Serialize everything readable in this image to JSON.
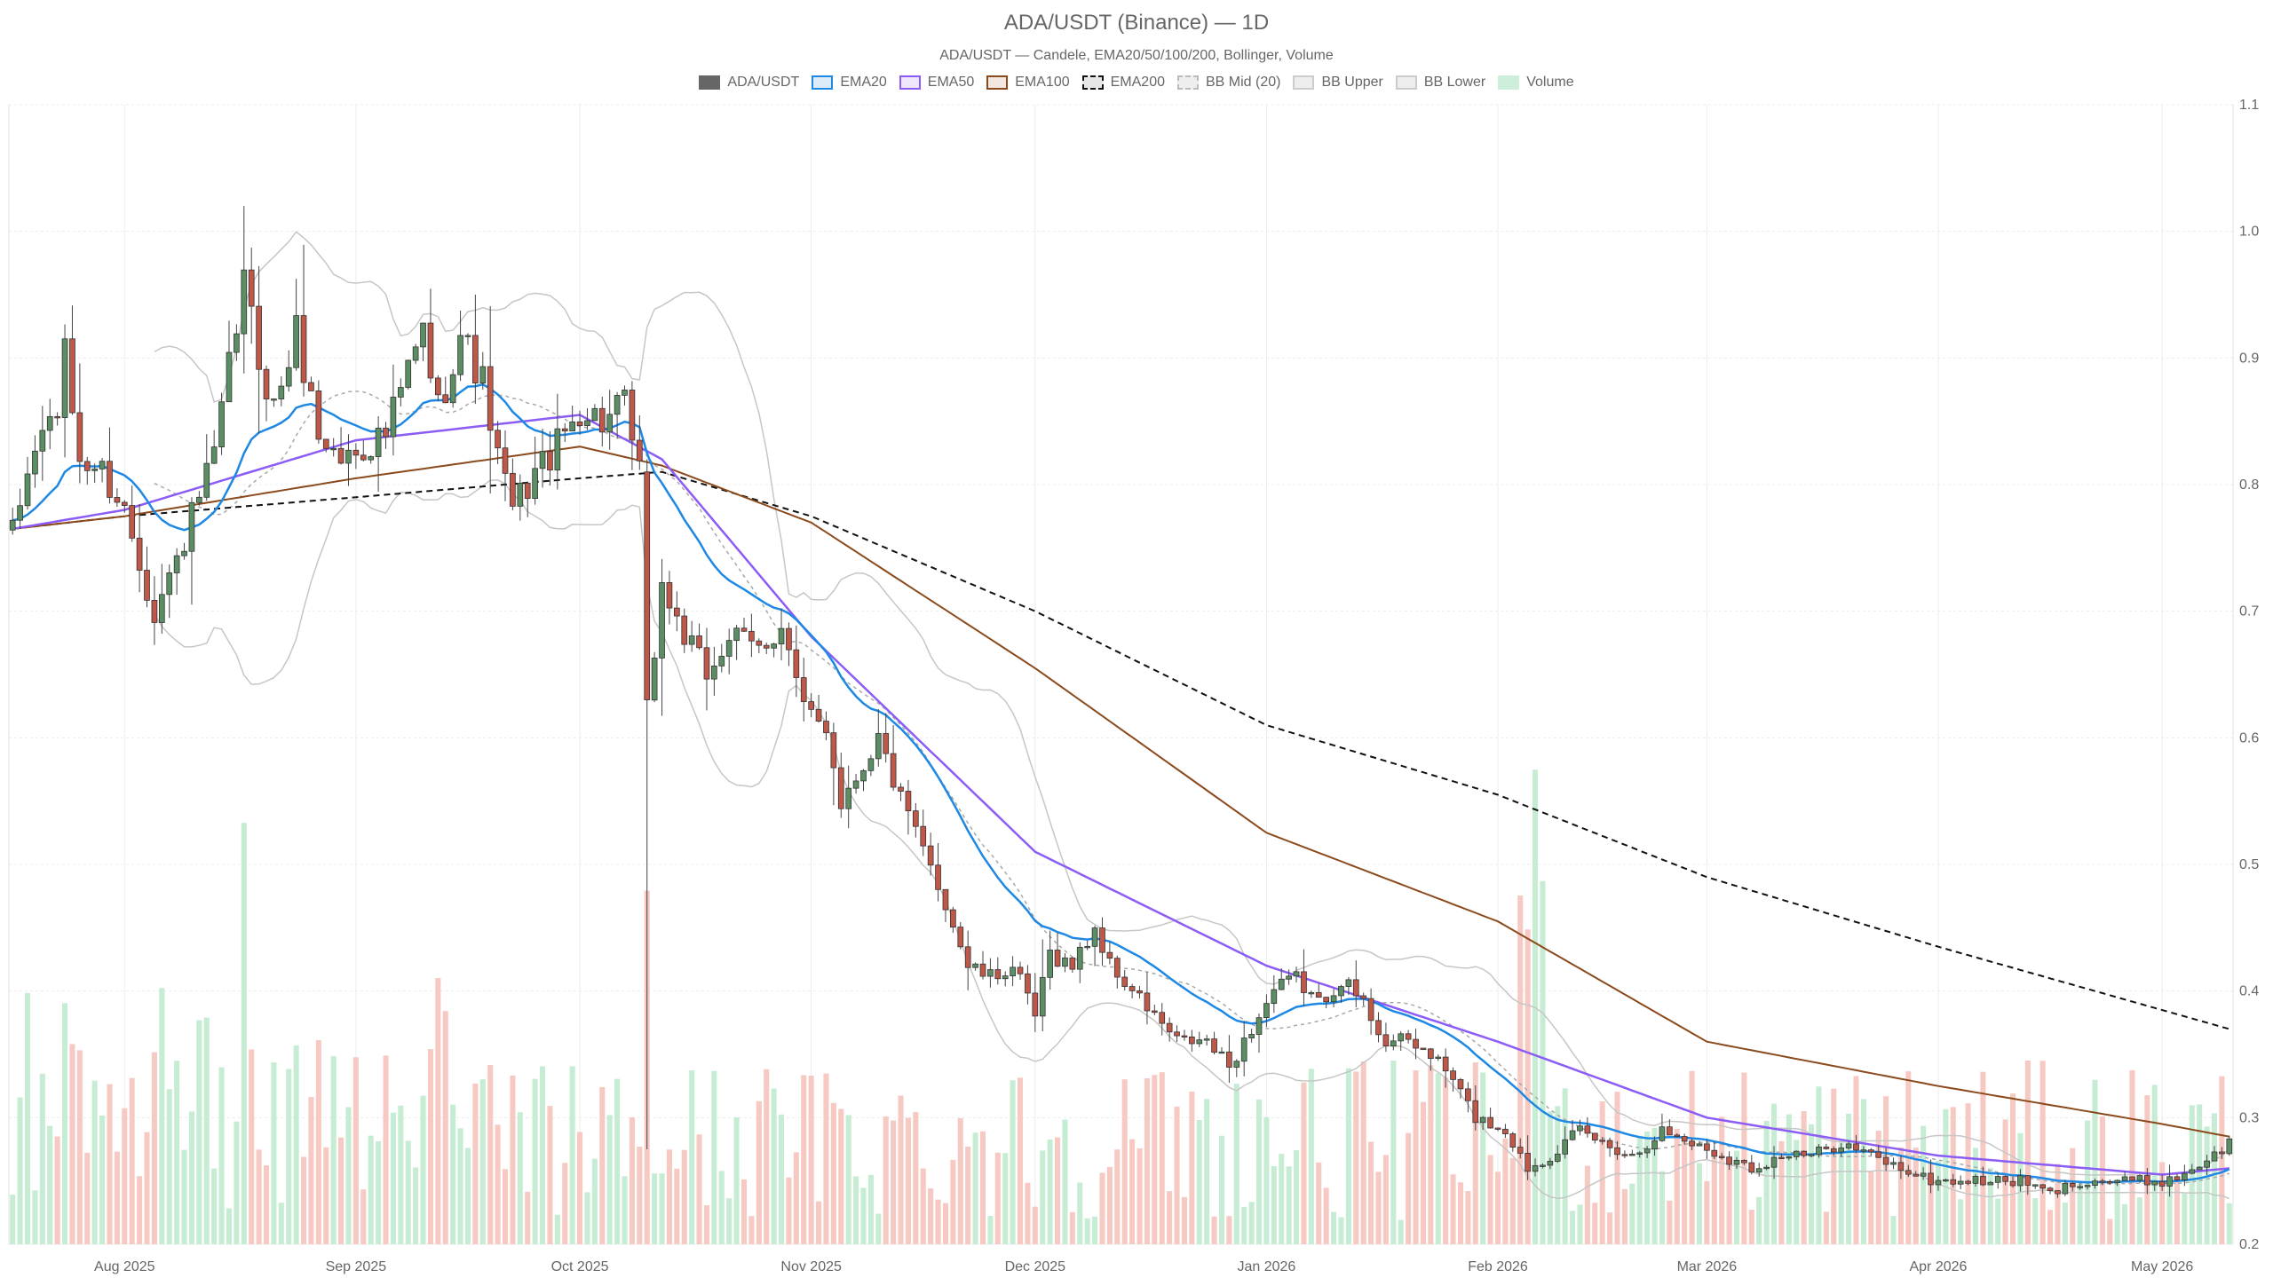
{
  "title": "ADA/USDT (Binance) — 1D",
  "subtitle": "ADA/USDT — Candele, EMA20/50/100/200, Bollinger, Volume",
  "legend": [
    {
      "label": "ADA/USDT",
      "fill": "#666666",
      "stroke": "#666666",
      "dash": false
    },
    {
      "label": "EMA20",
      "fill": "#dcecfb",
      "stroke": "#1e88e5",
      "dash": false
    },
    {
      "label": "EMA50",
      "fill": "#efe6fb",
      "stroke": "#8b5cf6",
      "dash": false
    },
    {
      "label": "EMA100",
      "fill": "#f2e8e1",
      "stroke": "#8b4a1c",
      "dash": false
    },
    {
      "label": "EMA200",
      "fill": "#e6e6e6",
      "stroke": "#111111",
      "dash": true
    },
    {
      "label": "BB Mid (20)",
      "fill": "#eeeeee",
      "stroke": "#bbbbbb",
      "dash": true
    },
    {
      "label": "BB Upper",
      "fill": "#eeeeee",
      "stroke": "#cccccc",
      "dash": false
    },
    {
      "label": "BB Lower",
      "fill": "#eeeeee",
      "stroke": "#cccccc",
      "dash": false
    },
    {
      "label": "Volume",
      "fill": "#cdeedb",
      "stroke": "#cdeedb",
      "dash": false
    }
  ],
  "colors": {
    "up": "#5b8f63",
    "down": "#c0584a",
    "ema20": "#1e88e5",
    "ema50": "#8b5cf6",
    "ema100": "#8b4a1c",
    "ema200": "#111111",
    "bb": "#c6c6c6",
    "bb_mid": "#a8a8a8",
    "vol_up": "#c6ecd4",
    "vol_down": "#f6c9c3",
    "grid": "#ececec"
  },
  "chart_data": {
    "type": "candlestick",
    "title": "ADA/USDT (Binance) — 1D",
    "subtitle": "ADA/USDT — Candele, EMA20/50/100/200, Bollinger, Volume",
    "y_axis": {
      "side": "right",
      "range": [
        0.2,
        1.1
      ],
      "ticks": [
        "0.2",
        "0.3",
        "0.4",
        "0.5",
        "0.6",
        "0.7",
        "0.8",
        "0.9",
        "1.0",
        "1.1"
      ]
    },
    "x_axis": {
      "range": [
        "2025-07-17",
        "2026-05-10"
      ],
      "ticks": [
        {
          "date": "2025-08-01",
          "label": "Aug 2025"
        },
        {
          "date": "2025-09-01",
          "label": "Sep 2025"
        },
        {
          "date": "2025-10-01",
          "label": "Oct 2025"
        },
        {
          "date": "2025-11-01",
          "label": "Nov 2025"
        },
        {
          "date": "2025-12-01",
          "label": "Dec 2025"
        },
        {
          "date": "2026-01-01",
          "label": "Jan 2026"
        },
        {
          "date": "2026-02-01",
          "label": "Feb 2026"
        },
        {
          "date": "2026-03-01",
          "label": "Mar 2026"
        },
        {
          "date": "2026-04-01",
          "label": "Apr 2026"
        },
        {
          "date": "2026-05-01",
          "label": "May 2026"
        }
      ]
    },
    "grid": true,
    "legend_position": "top-center",
    "start_date": "2025-07-17",
    "price_anchors": [
      [
        "2025-07-17",
        0.76
      ],
      [
        "2025-07-20",
        0.83
      ],
      [
        "2025-07-23",
        0.86
      ],
      [
        "2025-07-24",
        0.9
      ],
      [
        "2025-07-26",
        0.82
      ],
      [
        "2025-07-29",
        0.81
      ],
      [
        "2025-08-01",
        0.78
      ],
      [
        "2025-08-03",
        0.74
      ],
      [
        "2025-08-05",
        0.7
      ],
      [
        "2025-08-08",
        0.74
      ],
      [
        "2025-08-11",
        0.79
      ],
      [
        "2025-08-13",
        0.82
      ],
      [
        "2025-08-15",
        0.89
      ],
      [
        "2025-08-17",
        0.96
      ],
      [
        "2025-08-19",
        0.9
      ],
      [
        "2025-08-21",
        0.86
      ],
      [
        "2025-08-24",
        0.92
      ],
      [
        "2025-08-27",
        0.84
      ],
      [
        "2025-08-30",
        0.82
      ],
      [
        "2025-09-02",
        0.83
      ],
      [
        "2025-09-05",
        0.84
      ],
      [
        "2025-09-08",
        0.89
      ],
      [
        "2025-09-10",
        0.92
      ],
      [
        "2025-09-12",
        0.86
      ],
      [
        "2025-09-15",
        0.92
      ],
      [
        "2025-09-18",
        0.88
      ],
      [
        "2025-09-20",
        0.82
      ],
      [
        "2025-09-22",
        0.78
      ],
      [
        "2025-09-25",
        0.81
      ],
      [
        "2025-09-28",
        0.83
      ],
      [
        "2025-10-01",
        0.86
      ],
      [
        "2025-10-04",
        0.85
      ],
      [
        "2025-10-07",
        0.86
      ],
      [
        "2025-10-09",
        0.81
      ],
      [
        "2025-10-10",
        0.62
      ],
      [
        "2025-10-12",
        0.72
      ],
      [
        "2025-10-15",
        0.68
      ],
      [
        "2025-10-18",
        0.65
      ],
      [
        "2025-10-21",
        0.68
      ],
      [
        "2025-10-25",
        0.67
      ],
      [
        "2025-10-28",
        0.69
      ],
      [
        "2025-10-31",
        0.62
      ],
      [
        "2025-11-03",
        0.61
      ],
      [
        "2025-11-05",
        0.55
      ],
      [
        "2025-11-08",
        0.58
      ],
      [
        "2025-11-10",
        0.6
      ],
      [
        "2025-11-13",
        0.55
      ],
      [
        "2025-11-16",
        0.51
      ],
      [
        "2025-11-19",
        0.47
      ],
      [
        "2025-11-22",
        0.42
      ],
      [
        "2025-11-25",
        0.41
      ],
      [
        "2025-11-28",
        0.42
      ],
      [
        "2025-12-01",
        0.38
      ],
      [
        "2025-12-03",
        0.43
      ],
      [
        "2025-12-06",
        0.42
      ],
      [
        "2025-12-09",
        0.45
      ],
      [
        "2025-12-11",
        0.42
      ],
      [
        "2025-12-14",
        0.4
      ],
      [
        "2025-12-17",
        0.38
      ],
      [
        "2025-12-20",
        0.36
      ],
      [
        "2025-12-24",
        0.36
      ],
      [
        "2025-12-27",
        0.34
      ],
      [
        "2025-12-30",
        0.37
      ],
      [
        "2026-01-02",
        0.4
      ],
      [
        "2026-01-05",
        0.41
      ],
      [
        "2026-01-08",
        0.39
      ],
      [
        "2026-01-11",
        0.41
      ],
      [
        "2026-01-14",
        0.39
      ],
      [
        "2026-01-17",
        0.36
      ],
      [
        "2026-01-20",
        0.36
      ],
      [
        "2026-01-23",
        0.35
      ],
      [
        "2026-01-26",
        0.33
      ],
      [
        "2026-01-29",
        0.3
      ],
      [
        "2026-02-02",
        0.29
      ],
      [
        "2026-02-05",
        0.26
      ],
      [
        "2026-02-08",
        0.27
      ],
      [
        "2026-02-12",
        0.29
      ],
      [
        "2026-02-15",
        0.28
      ],
      [
        "2026-02-19",
        0.27
      ],
      [
        "2026-02-23",
        0.29
      ],
      [
        "2026-02-27",
        0.28
      ],
      [
        "2026-03-03",
        0.27
      ],
      [
        "2026-03-07",
        0.26
      ],
      [
        "2026-03-11",
        0.27
      ],
      [
        "2026-03-15",
        0.27
      ],
      [
        "2026-03-19",
        0.28
      ],
      [
        "2026-03-23",
        0.27
      ],
      [
        "2026-03-27",
        0.26
      ],
      [
        "2026-03-31",
        0.25
      ],
      [
        "2026-04-04",
        0.25
      ],
      [
        "2026-04-08",
        0.25
      ],
      [
        "2026-04-12",
        0.25
      ],
      [
        "2026-04-16",
        0.24
      ],
      [
        "2026-04-20",
        0.25
      ],
      [
        "2026-04-24",
        0.25
      ],
      [
        "2026-04-28",
        0.25
      ],
      [
        "2026-05-02",
        0.25
      ],
      [
        "2026-05-05",
        0.26
      ],
      [
        "2026-05-08",
        0.27
      ],
      [
        "2026-05-10",
        0.28
      ]
    ],
    "ema200_anchors": [
      [
        "2025-07-17",
        0.765
      ],
      [
        "2025-08-01",
        0.775
      ],
      [
        "2025-09-01",
        0.79
      ],
      [
        "2025-10-01",
        0.805
      ],
      [
        "2025-10-12",
        0.81
      ],
      [
        "2025-11-01",
        0.775
      ],
      [
        "2025-12-01",
        0.7
      ],
      [
        "2026-01-01",
        0.61
      ],
      [
        "2026-02-01",
        0.555
      ],
      [
        "2026-03-01",
        0.49
      ],
      [
        "2026-04-01",
        0.435
      ],
      [
        "2026-05-01",
        0.385
      ],
      [
        "2026-05-10",
        0.37
      ]
    ],
    "ema100_anchors": [
      [
        "2025-07-17",
        0.765
      ],
      [
        "2025-08-01",
        0.775
      ],
      [
        "2025-09-01",
        0.805
      ],
      [
        "2025-10-01",
        0.83
      ],
      [
        "2025-10-12",
        0.815
      ],
      [
        "2025-11-01",
        0.77
      ],
      [
        "2025-12-01",
        0.655
      ],
      [
        "2026-01-01",
        0.525
      ],
      [
        "2026-02-01",
        0.455
      ],
      [
        "2026-03-01",
        0.36
      ],
      [
        "2026-04-01",
        0.325
      ],
      [
        "2026-05-01",
        0.295
      ],
      [
        "2026-05-10",
        0.285
      ]
    ],
    "ema50_anchors": [
      [
        "2025-07-17",
        0.765
      ],
      [
        "2025-08-01",
        0.78
      ],
      [
        "2025-09-01",
        0.835
      ],
      [
        "2025-10-01",
        0.855
      ],
      [
        "2025-10-12",
        0.82
      ],
      [
        "2025-11-01",
        0.68
      ],
      [
        "2025-12-01",
        0.51
      ],
      [
        "2026-01-01",
        0.42
      ],
      [
        "2026-02-01",
        0.36
      ],
      [
        "2026-03-01",
        0.3
      ],
      [
        "2026-04-01",
        0.27
      ],
      [
        "2026-05-01",
        0.255
      ],
      [
        "2026-05-10",
        0.26
      ]
    ],
    "volume_range": [
      0,
      1
    ],
    "volume_axis_max_fraction_of_plot": 0.42,
    "spike_volumes": [
      [
        "2025-08-17",
        0.87
      ],
      [
        "2025-10-10",
        0.73
      ],
      [
        "2026-02-05",
        0.65
      ],
      [
        "2026-02-06",
        0.98
      ],
      [
        "2026-02-07",
        0.75
      ],
      [
        "2026-02-04",
        0.72
      ]
    ]
  }
}
